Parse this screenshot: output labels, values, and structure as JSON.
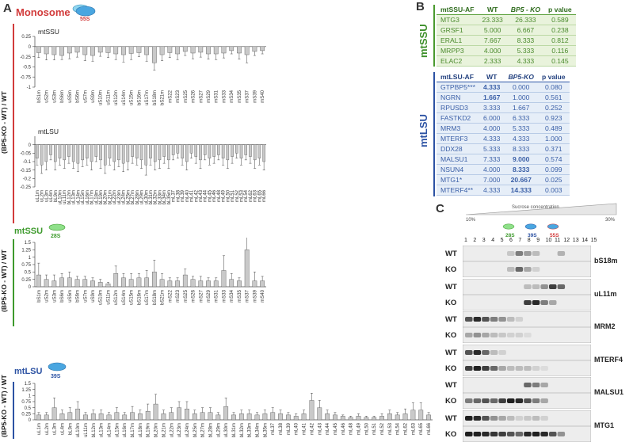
{
  "panel_a": {
    "label": "A",
    "title": "Monosome",
    "title_badge": "55S",
    "y_axis_label": "(BP5-KO - WT) / WT",
    "section_ssu_title": "mtSSU",
    "section_ssu_badge": "28S",
    "section_lsu_title": "mtLSU",
    "section_lsu_badge": "39S",
    "section_ssu_axis_label": "(BP5-KO - WT) / WT",
    "section_lsu_axis_label": "(BP5-KO - WT) / WT"
  },
  "panel_b": {
    "label": "B",
    "ssu_side_label": "mtSSU",
    "lsu_side_label": "mtLSU",
    "ssu_header": [
      "mtSSU-AF",
      "WT",
      "BP5 - KO",
      "p value"
    ],
    "ssu_rows": [
      [
        "MTG3",
        "23.333",
        "26.333",
        "0.589"
      ],
      [
        "GRSF1",
        "5.000",
        "6.667",
        "0.238"
      ],
      [
        "ERAL1",
        "7.667",
        "8.333",
        "0.812"
      ],
      [
        "MRPP3",
        "4.000",
        "5.333",
        "0.116"
      ],
      [
        "ELAC2",
        "2.333",
        "4.333",
        "0.145"
      ]
    ],
    "lsu_header": [
      "mtLSU-AF",
      "WT",
      "BP5-KO",
      "p value"
    ],
    "lsu_rows": [
      [
        "GTPBP5***",
        "4.333",
        "0.000",
        "0.080"
      ],
      [
        "NGRN",
        "1.667",
        "1.000",
        "0.561"
      ],
      [
        "RPUSD3",
        "3.333",
        "1.667",
        "0.252"
      ],
      [
        "FASTKD2",
        "6.000",
        "6.333",
        "0.923"
      ],
      [
        "MRM3",
        "4.000",
        "5.333",
        "0.489"
      ],
      [
        "MTERF3",
        "4.333",
        "4.333",
        "1.000"
      ],
      [
        "DDX28",
        "5.333",
        "8.333",
        "0.371"
      ],
      [
        "MALSU1",
        "7.333",
        "9.000",
        "0.574"
      ],
      [
        "NSUN4",
        "4.000",
        "8.333",
        "0.099"
      ],
      [
        "MTG1*",
        "7.000",
        "20.667",
        "0.025"
      ],
      [
        "MTERF4**",
        "4.333",
        "14.333",
        "0.003"
      ]
    ]
  },
  "panel_c": {
    "label": "C",
    "gradient_title": "Sucrose concentration",
    "gradient_low": "10%",
    "gradient_high": "30%",
    "markers": [
      {
        "text": "28S",
        "color": "#3d9a2c"
      },
      {
        "text": "39S",
        "color": "#2c52a3"
      },
      {
        "text": "55S",
        "color": "#d23b3b"
      }
    ],
    "fractions": [
      "1",
      "2",
      "3",
      "4",
      "5",
      "6",
      "7",
      "8",
      "9",
      "10",
      "11",
      "12",
      "13",
      "14",
      "15"
    ],
    "blots": [
      {
        "protein": "bS18m",
        "rows": [
          "WT",
          "KO"
        ]
      },
      {
        "protein": "uL11m",
        "rows": [
          "WT",
          "KO"
        ]
      },
      {
        "protein": "MRM2",
        "rows": [
          "WT",
          "KO"
        ]
      },
      {
        "protein": "MTERF4",
        "rows": [
          "WT",
          "KO"
        ]
      },
      {
        "protein": "MALSU1",
        "rows": [
          "WT",
          "KO"
        ]
      },
      {
        "protein": "MTG1",
        "rows": [
          "WT",
          "KO"
        ]
      }
    ]
  },
  "chart_data": [
    {
      "type": "bar",
      "title": "mtSSU",
      "ylabel": "(BP5-KO - WT) / WT",
      "ylim": [
        -1,
        0.25
      ],
      "yticks": [
        "0.25",
        "0",
        "-0.25",
        "-0.5",
        "-0.75",
        "-1"
      ],
      "categories": [
        "bS1m",
        "uS2m",
        "uS3m",
        "bS6m",
        "uS5m",
        "bS6m",
        "uS7m",
        "uS9m",
        "uS10m",
        "uS11m",
        "uS12m",
        "uS14m",
        "uS15m",
        "bS16m",
        "uS17m",
        "bS18m",
        "bS21m",
        "mS22",
        "mS23",
        "mS25",
        "mS26",
        "mS27",
        "mS29",
        "mS31",
        "mS33",
        "mS34",
        "mS35",
        "mS37",
        "mS39",
        "mS40"
      ],
      "values": [
        -0.15,
        -0.18,
        -0.2,
        -0.22,
        -0.16,
        -0.14,
        -0.2,
        -0.22,
        -0.14,
        -0.15,
        -0.18,
        -0.2,
        -0.17,
        -0.15,
        -0.2,
        -0.4,
        -0.2,
        -0.15,
        -0.18,
        -0.12,
        -0.16,
        -0.14,
        -0.18,
        -0.18,
        -0.16,
        -0.1,
        -0.16,
        -0.2,
        -0.12,
        -0.1
      ],
      "errors": [
        0.12,
        0.15,
        0.13,
        0.1,
        0.14,
        0.12,
        0.15,
        0.14,
        0.1,
        0.12,
        0.14,
        0.18,
        0.15,
        0.1,
        0.16,
        0.18,
        0.15,
        0.12,
        0.14,
        0.1,
        0.14,
        0.12,
        0.13,
        0.14,
        0.12,
        0.08,
        0.15,
        0.2,
        0.1,
        0.08
      ]
    },
    {
      "type": "bar",
      "title": "mtLSU",
      "ylabel": "(BP5-KO - WT) / WT",
      "ylim": [
        -0.25,
        0.05
      ],
      "yticks": [
        "0",
        "-0.05",
        "-0.1",
        "-0.15",
        "-0.2",
        "-0.25"
      ],
      "categories": [
        "uL1m",
        "uL2m",
        "uL3m",
        "uL4m",
        "bL9m",
        "uL10m",
        "uL11m",
        "bL12m",
        "uL13m",
        "uL14m",
        "uL15m",
        "uL16m",
        "bL17m",
        "uL18m",
        "bL19m",
        "bL20m",
        "bL21m",
        "uL22m",
        "uL23m",
        "uL24m",
        "bL25m",
        "bL27m",
        "bL28m",
        "uL29m",
        "uL30m",
        "bL31m",
        "bL32m",
        "bL33m",
        "bL34m",
        "bL35m",
        "mL37",
        "mL38",
        "mL39",
        "mL40",
        "mL41",
        "mL42",
        "mL43",
        "mL44",
        "mL45",
        "mL46",
        "mL48",
        "mL49",
        "mL50",
        "mL51",
        "mL52",
        "mL53",
        "mL54",
        "mL62",
        "mL63",
        "mL65",
        "mL66"
      ],
      "values": [
        -0.08,
        -0.12,
        -0.1,
        -0.06,
        -0.1,
        -0.08,
        -0.09,
        -0.07,
        -0.1,
        -0.11,
        -0.09,
        -0.08,
        -0.1,
        -0.07,
        -0.09,
        -0.12,
        -0.08,
        -0.1,
        -0.09,
        -0.11,
        -0.1,
        -0.07,
        -0.08,
        -0.09,
        -0.12,
        -0.08,
        -0.1,
        -0.09,
        -0.07,
        -0.09,
        -0.06,
        -0.05,
        -0.08,
        -0.1,
        -0.05,
        -0.07,
        -0.09,
        -0.06,
        -0.08,
        -0.07,
        -0.06,
        -0.08,
        -0.09,
        -0.07,
        -0.05,
        -0.08,
        -0.06,
        -0.07,
        -0.09,
        -0.08,
        -0.1
      ],
      "errors": [
        0.04,
        0.05,
        0.05,
        0.03,
        0.05,
        0.04,
        0.05,
        0.04,
        0.04,
        0.05,
        0.04,
        0.04,
        0.05,
        0.03,
        0.05,
        0.05,
        0.04,
        0.05,
        0.04,
        0.05,
        0.05,
        0.04,
        0.04,
        0.05,
        0.06,
        0.04,
        0.05,
        0.05,
        0.04,
        0.05,
        0.03,
        0.03,
        0.04,
        0.05,
        0.03,
        0.04,
        0.05,
        0.03,
        0.04,
        0.04,
        0.03,
        0.04,
        0.05,
        0.04,
        0.03,
        0.04,
        0.03,
        0.04,
        0.05,
        0.04,
        0.05
      ]
    },
    {
      "type": "bar",
      "title": "mtSSU",
      "ylabel": "(BP5-KO - WT) / WT",
      "ylim": [
        0,
        1.5
      ],
      "yticks": [
        "1.5",
        "1.25",
        "1",
        "0.75",
        "0.5",
        "0.25",
        "0"
      ],
      "categories": [
        "bS1m",
        "uS2m",
        "uS3m",
        "bS6m",
        "uS5m",
        "bS6m",
        "uS7m",
        "uS9m",
        "uS10m",
        "uS11m",
        "uS12m",
        "uS14m",
        "uS15m",
        "bS16m",
        "uS17m",
        "bS18m",
        "bS21m",
        "mS22",
        "mS23",
        "mS25",
        "mS26",
        "mS27",
        "mS29",
        "mS31",
        "mS33",
        "mS34",
        "mS35",
        "mS37",
        "mS39",
        "mS40"
      ],
      "values": [
        0.4,
        0.25,
        0.2,
        0.3,
        0.3,
        0.25,
        0.25,
        0.2,
        0.15,
        0.1,
        0.45,
        0.3,
        0.25,
        0.3,
        0.3,
        0.5,
        0.25,
        0.2,
        0.2,
        0.4,
        0.25,
        0.2,
        0.2,
        0.2,
        0.55,
        0.25,
        0.2,
        1.25,
        0.2,
        0.2
      ],
      "errors": [
        0.4,
        0.15,
        0.2,
        0.15,
        0.2,
        0.1,
        0.1,
        0.1,
        0.1,
        0.05,
        0.25,
        0.15,
        0.2,
        0.15,
        0.25,
        0.4,
        0.2,
        0.1,
        0.1,
        0.2,
        0.1,
        0.15,
        0.1,
        0.1,
        0.5,
        0.2,
        0.1,
        0.5,
        0.3,
        0.15
      ]
    },
    {
      "type": "bar",
      "title": "mtLSU",
      "ylabel": "(BP5-KO - WT) / WT",
      "ylim": [
        0,
        1.5
      ],
      "yticks": [
        "1.5",
        "1.25",
        "1",
        "0.75",
        "0.5",
        "0.25",
        "0"
      ],
      "categories": [
        "uL1m",
        "uL2m",
        "uL3m",
        "uL4m",
        "bL9m",
        "uL10m",
        "uL11m",
        "bL12m",
        "uL13m",
        "uL14m",
        "uL15m",
        "uL16m",
        "bL17m",
        "uL18m",
        "bL19m",
        "bL20m",
        "bL21m",
        "uL22m",
        "uL23m",
        "uL24m",
        "bL25m",
        "bL27m",
        "bL28m",
        "uL29m",
        "uL30m",
        "bL31m",
        "bL32m",
        "bL33m",
        "bL34m",
        "bL35m",
        "mL37",
        "mL38",
        "mL39",
        "mL40",
        "mL41",
        "mL42",
        "mL43",
        "mL44",
        "mL45",
        "mL46",
        "mL48",
        "mL49",
        "mL50",
        "mL51",
        "mL52",
        "mL53",
        "mL54",
        "mL62",
        "mL63",
        "mL65",
        "mL66"
      ],
      "values": [
        0.2,
        0.2,
        0.5,
        0.25,
        0.3,
        0.45,
        0.2,
        0.25,
        0.25,
        0.2,
        0.3,
        0.2,
        0.3,
        0.25,
        0.35,
        0.65,
        0.25,
        0.3,
        0.5,
        0.45,
        0.25,
        0.3,
        0.3,
        0.2,
        0.55,
        0.2,
        0.25,
        0.25,
        0.2,
        0.25,
        0.3,
        0.25,
        0.2,
        0.15,
        0.25,
        0.8,
        0.5,
        0.25,
        0.2,
        0.15,
        0.1,
        0.15,
        0.1,
        0.1,
        0.15,
        0.25,
        0.2,
        0.25,
        0.4,
        0.4,
        0.2
      ],
      "errors": [
        0.1,
        0.1,
        0.4,
        0.15,
        0.2,
        0.3,
        0.1,
        0.15,
        0.15,
        0.1,
        0.2,
        0.1,
        0.25,
        0.15,
        0.3,
        0.4,
        0.15,
        0.2,
        0.25,
        0.3,
        0.15,
        0.2,
        0.2,
        0.1,
        0.35,
        0.1,
        0.15,
        0.15,
        0.1,
        0.15,
        0.2,
        0.15,
        0.1,
        0.1,
        0.15,
        0.3,
        0.3,
        0.15,
        0.1,
        0.05,
        0.05,
        0.1,
        0.05,
        0.05,
        0.1,
        0.15,
        0.1,
        0.2,
        0.3,
        0.3,
        0.1
      ]
    }
  ]
}
